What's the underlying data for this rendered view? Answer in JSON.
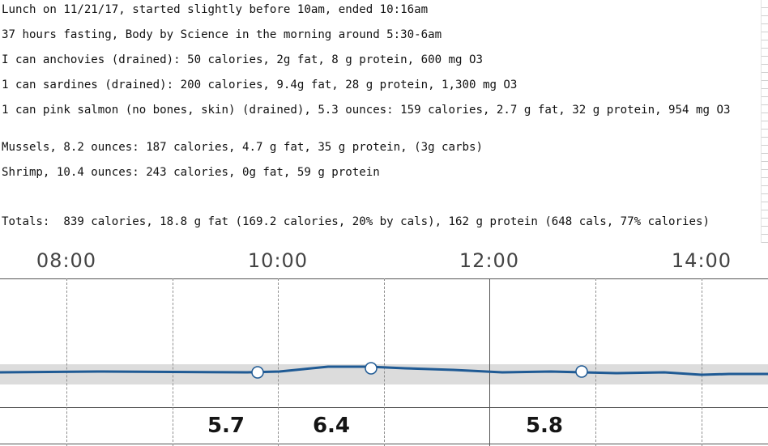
{
  "notes": {
    "lines": [
      "Lunch on 11/21/17, started slightly before 10am, ended 10:16am",
      "37 hours fasting, Body by Science in the morning around 5:30-6am",
      "I can anchovies (drained): 50 calories, 2g fat, 8 g protein, 600 mg O3",
      "1 can sardines (drained): 200 calories, 9.4g fat, 28 g protein, 1,300 mg O3",
      "1 can pink salmon (no bones, skin) (drained), 5.3 ounces: 159 calories, 2.7 g fat, 32 g protein, 954 mg O3",
      "Mussels, 8.2 ounces: 187 calories, 4.7 g fat, 35 g protein, (3g carbs)",
      "Shrimp, 10.4 ounces: 243 calories, 0g fat, 59 g protein",
      "Totals:  839 calories, 18.8 g fat (169.2 calories, 20% by cals), 162 g protein (648 cals, 77% calories)"
    ]
  },
  "chart": {
    "time_labels": [
      "08:00",
      "10:00",
      "12:00",
      "14:00"
    ],
    "readings": [
      {
        "value": "5.7"
      },
      {
        "value": "6.4"
      },
      {
        "value": "5.8"
      }
    ],
    "colors": {
      "trace": "#1f5a94",
      "band": "#dcdcdc",
      "grid": "#8f8f8f",
      "axis": "#555555",
      "marker_fill": "#ffffff"
    }
  }
}
